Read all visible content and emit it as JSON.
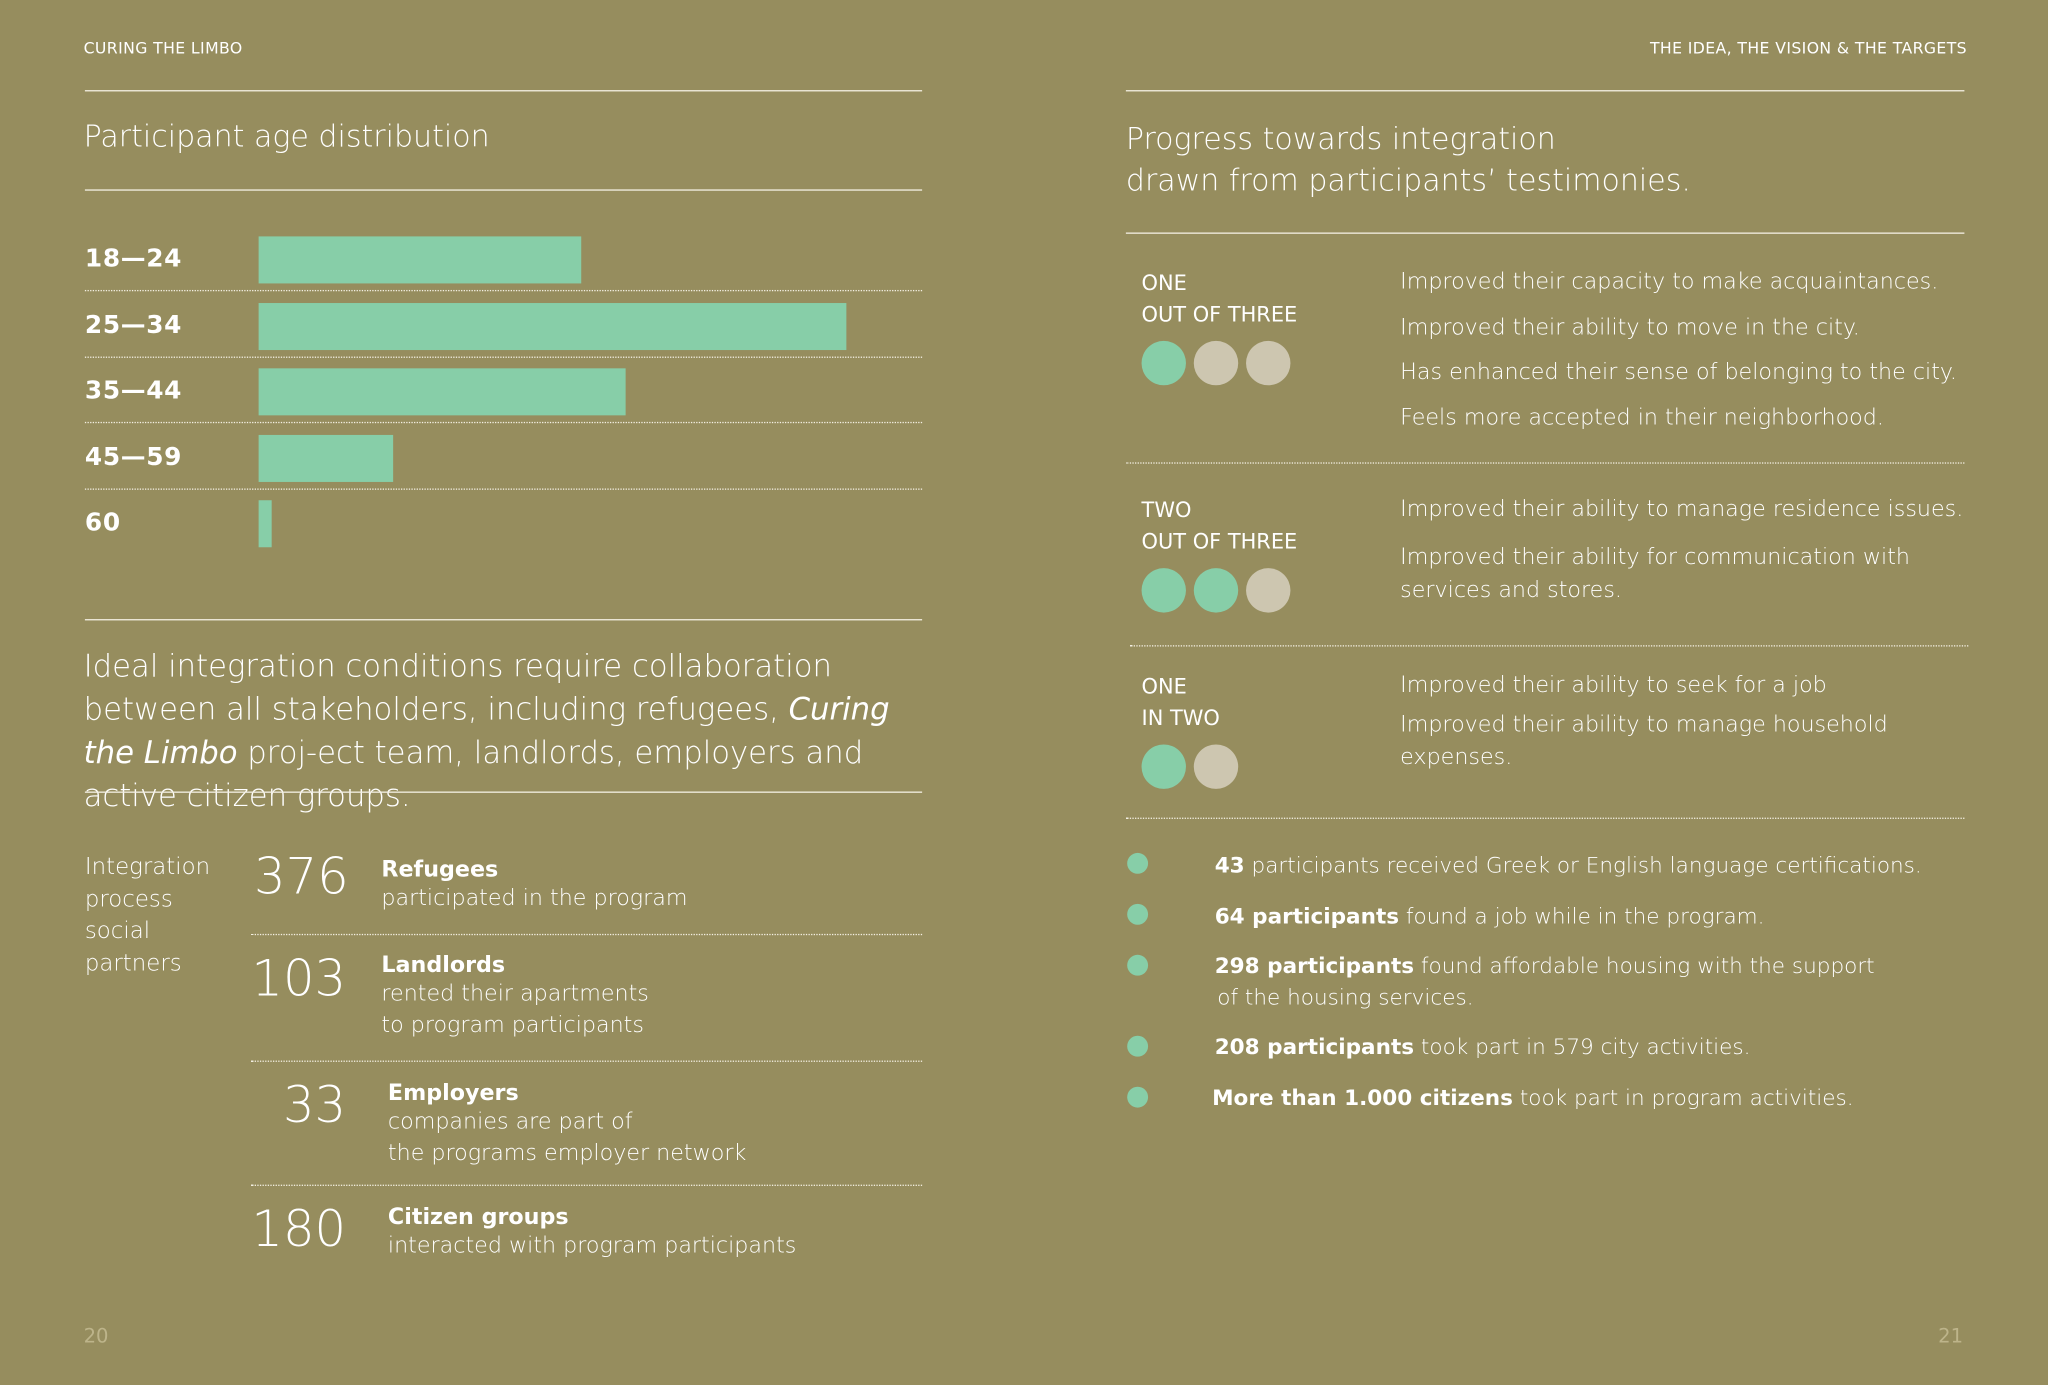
{
  "header": {
    "left": "CURING THE LIMBO",
    "right": "THE IDEA, THE VISION & THE TARGETS"
  },
  "age_section": {
    "title": "Participant age distribution"
  },
  "chart_data": {
    "type": "bar",
    "orientation": "horizontal",
    "title": "Participant age distribution",
    "categories": [
      "18—24",
      "25—34",
      "35—44",
      "45—59",
      "60"
    ],
    "values": [
      247,
      450,
      281,
      103,
      10
    ],
    "note_values": "relative bar lengths; no axis or value labels printed",
    "bar_color": "#87cea8",
    "grid": false
  },
  "quote": {
    "pre": "Ideal integration conditions require collaboration between all stakeholders, including refugees, ",
    "italic": "Curing the Limbo",
    "post": " proj-ect team, landlords, employers and active citizen groups."
  },
  "partners": {
    "label": [
      "Integration",
      "process",
      "social",
      "partners"
    ],
    "items": [
      {
        "num": "376",
        "title": "Refugees",
        "desc": [
          "participated in the program"
        ]
      },
      {
        "num": "103",
        "title": "Landlords",
        "desc": [
          "rented their apartments",
          "to program participants"
        ]
      },
      {
        "num": "33",
        "title": "Employers",
        "desc": [
          "companies are part of",
          "the programs employer network"
        ]
      },
      {
        "num": "180",
        "title": "Citizen groups",
        "desc": [
          "interacted with program participants"
        ]
      }
    ]
  },
  "progress": {
    "title": [
      "Progress towards integration",
      "drawn from participants’ testimonies."
    ],
    "groups": [
      {
        "ratio": [
          "ONE",
          "OUT OF THREE"
        ],
        "filled": 1,
        "total": 3,
        "statements": [
          "Improved their capacity to make acquaintances.",
          "Improved their ability to move in the city.",
          "Has enhanced their sense of belonging to the city.",
          "Feels more accepted in their neighborhood."
        ]
      },
      {
        "ratio": [
          "TWO",
          "OUT OF THREE"
        ],
        "filled": 2,
        "total": 3,
        "statements": [
          "Improved their ability to manage residence issues.",
          "Improved their ability for communication with services and stores."
        ]
      },
      {
        "ratio": [
          "ONE",
          "IN TWO"
        ],
        "filled": 1,
        "total": 2,
        "statements": [
          "Improved their ability to seek for a job",
          "Improved their ability to manage household expenses."
        ]
      }
    ],
    "bullets": [
      {
        "bold": "43",
        "text": " participants received Greek or English language certifications."
      },
      {
        "bold": "64 participants",
        "text": " found a job while in the program."
      },
      {
        "bold": "298 participants",
        "text": " found affordable housing with the support",
        "text2": "of the housing services."
      },
      {
        "bold": "208 participants",
        "text": " took part in 579 city activities."
      },
      {
        "bold": "More than 1.000 citizens",
        "text": " took part in program activities."
      }
    ]
  },
  "pages": {
    "left": "20",
    "right": "21"
  },
  "colors": {
    "background": "#968d5e",
    "accent": "#87cea8",
    "inactive": "#cdc6b0"
  }
}
